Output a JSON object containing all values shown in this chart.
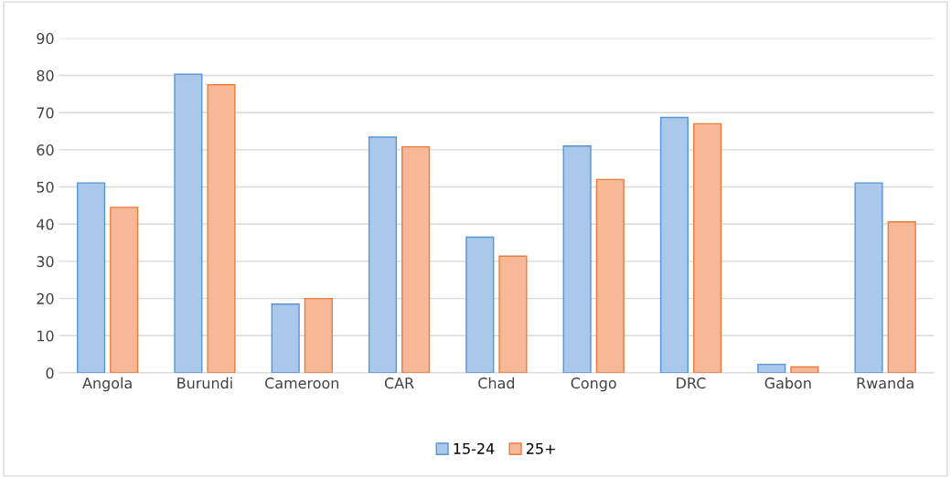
{
  "chart_data": {
    "type": "bar",
    "categories": [
      "Angola",
      "Burundi",
      "Cameroon",
      "CAR",
      "Chad",
      "Congo",
      "DRC",
      "Gabon",
      "Rwanda"
    ],
    "series": [
      {
        "name": "15-24",
        "color": "#a9c8ea",
        "values": [
          51.1,
          80.3,
          18.5,
          63.4,
          36.5,
          61.0,
          68.7,
          2.3,
          51.1
        ]
      },
      {
        "name": "25+",
        "color": "#f6b896",
        "values": [
          44.5,
          77.5,
          20.0,
          60.8,
          31.4,
          52.0,
          67.0,
          1.6,
          40.6
        ]
      }
    ],
    "ylim": [
      0,
      90
    ],
    "yticks": [
      0,
      10,
      20,
      30,
      40,
      50,
      60,
      70,
      80,
      90
    ],
    "grid": "y",
    "legend": "bottom"
  }
}
